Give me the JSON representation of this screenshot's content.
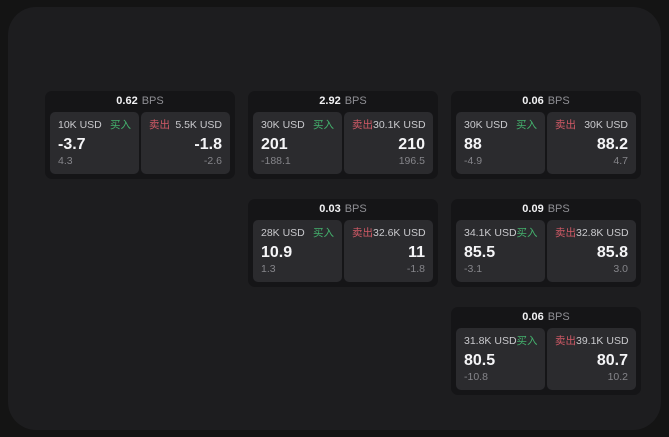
{
  "labels": {
    "bps_unit": "BPS",
    "buy": "买入",
    "sell": "卖出"
  },
  "colors": {
    "buy_green": "#44b36e",
    "sell_red": "#d15a66",
    "panel_bg": "#1d1d1f",
    "card_bg": "#151517",
    "tile_bg": "#2b2b2e"
  },
  "cards": [
    {
      "bps": "0.62",
      "buy": {
        "amount": "10K USD",
        "price": "-3.7",
        "delta": "4.3"
      },
      "sell": {
        "amount": "5.5K USD",
        "price": "-1.8",
        "delta": "-2.6"
      }
    },
    {
      "bps": "2.92",
      "buy": {
        "amount": "30K USD",
        "price": "201",
        "delta": "-188.1"
      },
      "sell": {
        "amount": "30.1K USD",
        "price": "210",
        "delta": "196.5"
      }
    },
    {
      "bps": "0.06",
      "buy": {
        "amount": "30K USD",
        "price": "88",
        "delta": "-4.9"
      },
      "sell": {
        "amount": "30K USD",
        "price": "88.2",
        "delta": "4.7"
      }
    },
    {
      "bps": "0.03",
      "buy": {
        "amount": "28K USD",
        "price": "10.9",
        "delta": "1.3"
      },
      "sell": {
        "amount": "32.6K USD",
        "price": "11",
        "delta": "-1.8"
      }
    },
    {
      "bps": "0.09",
      "buy": {
        "amount": "34.1K USD",
        "price": "85.5",
        "delta": "-3.1"
      },
      "sell": {
        "amount": "32.8K USD",
        "price": "85.8",
        "delta": "3.0"
      }
    },
    {
      "bps": "0.06",
      "buy": {
        "amount": "31.8K USD",
        "price": "80.5",
        "delta": "-10.8"
      },
      "sell": {
        "amount": "39.1K USD",
        "price": "80.7",
        "delta": "10.2"
      }
    }
  ]
}
